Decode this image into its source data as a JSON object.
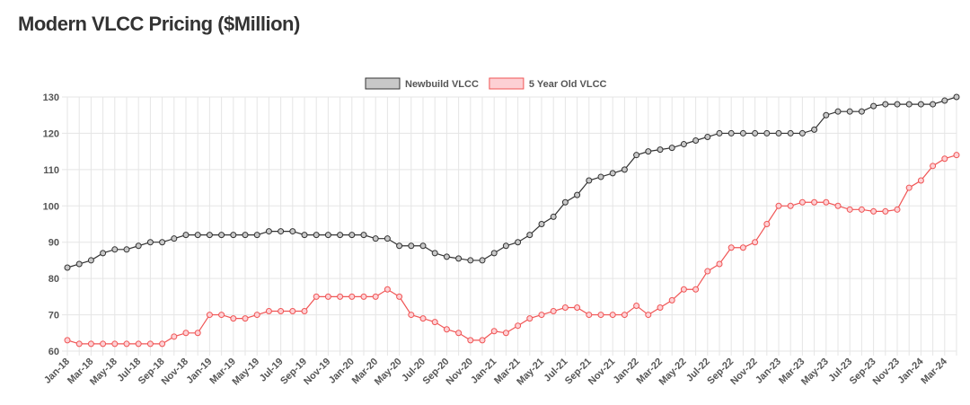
{
  "page": {
    "title": "Modern VLCC Pricing ($Million)"
  },
  "chart_data": {
    "type": "line",
    "title": "Modern VLCC Pricing ($Million)",
    "xlabel": "",
    "ylabel": "",
    "ylim": [
      60,
      130
    ],
    "yticks": [
      60,
      70,
      80,
      90,
      100,
      110,
      120,
      130
    ],
    "grid": true,
    "legend_position": "top-center",
    "categories": [
      "Jan-18",
      "Feb-18",
      "Mar-18",
      "Apr-18",
      "May-18",
      "Jun-18",
      "Jul-18",
      "Aug-18",
      "Sep-18",
      "Oct-18",
      "Nov-18",
      "Dec-18",
      "Jan-19",
      "Feb-19",
      "Mar-19",
      "Apr-19",
      "May-19",
      "Jun-19",
      "Jul-19",
      "Aug-19",
      "Sep-19",
      "Oct-19",
      "Nov-19",
      "Dec-19",
      "Jan-20",
      "Feb-20",
      "Mar-20",
      "Apr-20",
      "May-20",
      "Jun-20",
      "Jul-20",
      "Aug-20",
      "Sep-20",
      "Oct-20",
      "Nov-20",
      "Dec-20",
      "Jan-21",
      "Feb-21",
      "Mar-21",
      "Apr-21",
      "May-21",
      "Jun-21",
      "Jul-21",
      "Aug-21",
      "Sep-21",
      "Oct-21",
      "Nov-21",
      "Dec-21",
      "Jan-22",
      "Feb-22",
      "Mar-22",
      "Apr-22",
      "May-22",
      "Jun-22",
      "Jul-22",
      "Aug-22",
      "Sep-22",
      "Oct-22",
      "Nov-22",
      "Dec-22",
      "Jan-23",
      "Feb-23",
      "Mar-23",
      "Apr-23",
      "May-23",
      "Jun-23",
      "Jul-23",
      "Aug-23",
      "Sep-23",
      "Oct-23",
      "Nov-23",
      "Dec-23",
      "Jan-24",
      "Feb-24",
      "Mar-24",
      "Apr-24"
    ],
    "series": [
      {
        "name": "Newbuild VLCC",
        "color": "#333333",
        "fill": "#c8c8c8",
        "values": [
          83,
          84,
          85,
          87,
          88,
          88,
          89,
          90,
          90,
          91,
          92,
          92,
          92,
          92,
          92,
          92,
          92,
          93,
          93,
          93,
          92,
          92,
          92,
          92,
          92,
          92,
          91,
          91,
          89,
          89,
          89,
          87,
          86,
          85.5,
          85,
          85,
          87,
          89,
          90,
          92,
          95,
          97,
          101,
          103,
          107,
          108,
          109,
          110,
          114,
          115,
          115.5,
          116,
          117,
          118,
          119,
          120,
          120,
          120,
          120,
          120,
          120,
          120,
          120,
          121,
          125,
          126,
          126,
          126,
          127.5,
          128,
          128,
          128,
          128,
          128,
          129,
          130
        ]
      },
      {
        "name": "5 Year Old VLCC",
        "color": "#f05555",
        "fill": "#fdd0d4",
        "values": [
          63,
          62,
          62,
          62,
          62,
          62,
          62,
          62,
          62,
          64,
          65,
          65,
          70,
          70,
          69,
          69,
          70,
          71,
          71,
          71,
          71,
          75,
          75,
          75,
          75,
          75,
          75,
          77,
          75,
          70,
          69,
          68,
          66,
          65,
          63,
          63,
          65.5,
          65,
          67,
          69,
          70,
          71,
          72,
          72,
          70,
          70,
          70,
          70,
          72.5,
          70,
          72,
          74,
          77,
          77,
          82,
          84,
          88.5,
          88.5,
          90,
          95,
          100,
          100,
          101,
          101,
          101,
          100,
          99,
          99,
          98.5,
          98.5,
          99,
          105,
          107,
          111,
          113,
          114
        ]
      }
    ]
  }
}
